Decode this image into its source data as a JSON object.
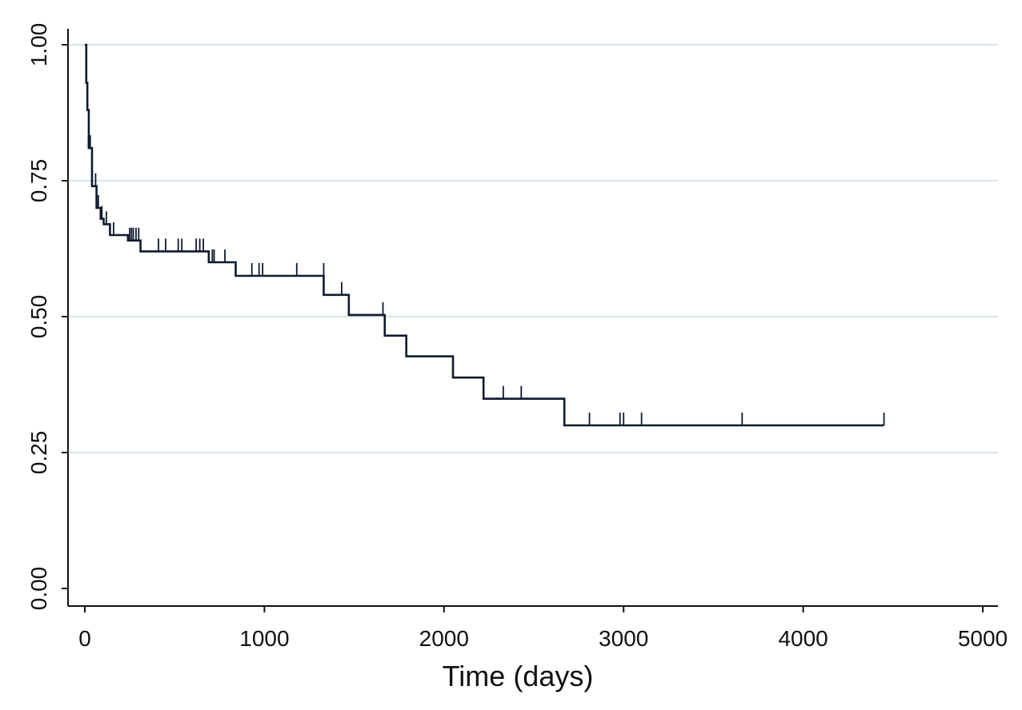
{
  "chart_data": {
    "type": "line",
    "title": "",
    "xlabel": "Time (days)",
    "ylabel": "",
    "xlim": [
      0,
      5000
    ],
    "ylim": [
      0,
      1
    ],
    "x_ticks": [
      0,
      1000,
      2000,
      3000,
      4000,
      5000
    ],
    "x_tick_labels": [
      "0",
      "1000",
      "2000",
      "3000",
      "4000",
      "5000"
    ],
    "y_ticks": [
      0,
      0.25,
      0.5,
      0.75,
      1
    ],
    "y_tick_labels": [
      "0.00",
      "0.25",
      "0.50",
      "0.75",
      "1.00"
    ],
    "grid": "horizontal",
    "legend": "none",
    "colors": {
      "line": "#0f1a2e",
      "grid": "#d6e4ea",
      "axis": "#111111"
    },
    "series": [
      {
        "style": "step",
        "x": [
          0,
          8,
          14,
          22,
          40,
          65,
          88,
          105,
          140,
          240,
          310,
          690,
          840,
          1330,
          1470,
          1670,
          1790,
          2050,
          2220,
          2670,
          4450
        ],
        "y": [
          1.0,
          0.93,
          0.88,
          0.81,
          0.74,
          0.7,
          0.68,
          0.67,
          0.65,
          0.64,
          0.62,
          0.6,
          0.575,
          0.54,
          0.503,
          0.465,
          0.427,
          0.388,
          0.349,
          0.3,
          0.3
        ]
      }
    ],
    "censored": {
      "x": [
        20,
        30,
        60,
        75,
        95,
        120,
        160,
        250,
        260,
        270,
        285,
        300,
        410,
        450,
        520,
        540,
        620,
        640,
        660,
        710,
        720,
        780,
        840,
        930,
        970,
        990,
        1180,
        1330,
        1430,
        1660,
        2330,
        2430,
        2810,
        2980,
        3000,
        3100,
        3660,
        4450
      ],
      "y": [
        0.81,
        0.81,
        0.74,
        0.7,
        0.68,
        0.67,
        0.65,
        0.64,
        0.64,
        0.64,
        0.64,
        0.64,
        0.62,
        0.62,
        0.62,
        0.62,
        0.62,
        0.62,
        0.62,
        0.6,
        0.6,
        0.6,
        0.575,
        0.575,
        0.575,
        0.575,
        0.575,
        0.575,
        0.54,
        0.503,
        0.349,
        0.349,
        0.3,
        0.3,
        0.3,
        0.3,
        0.3,
        0.3
      ]
    }
  }
}
